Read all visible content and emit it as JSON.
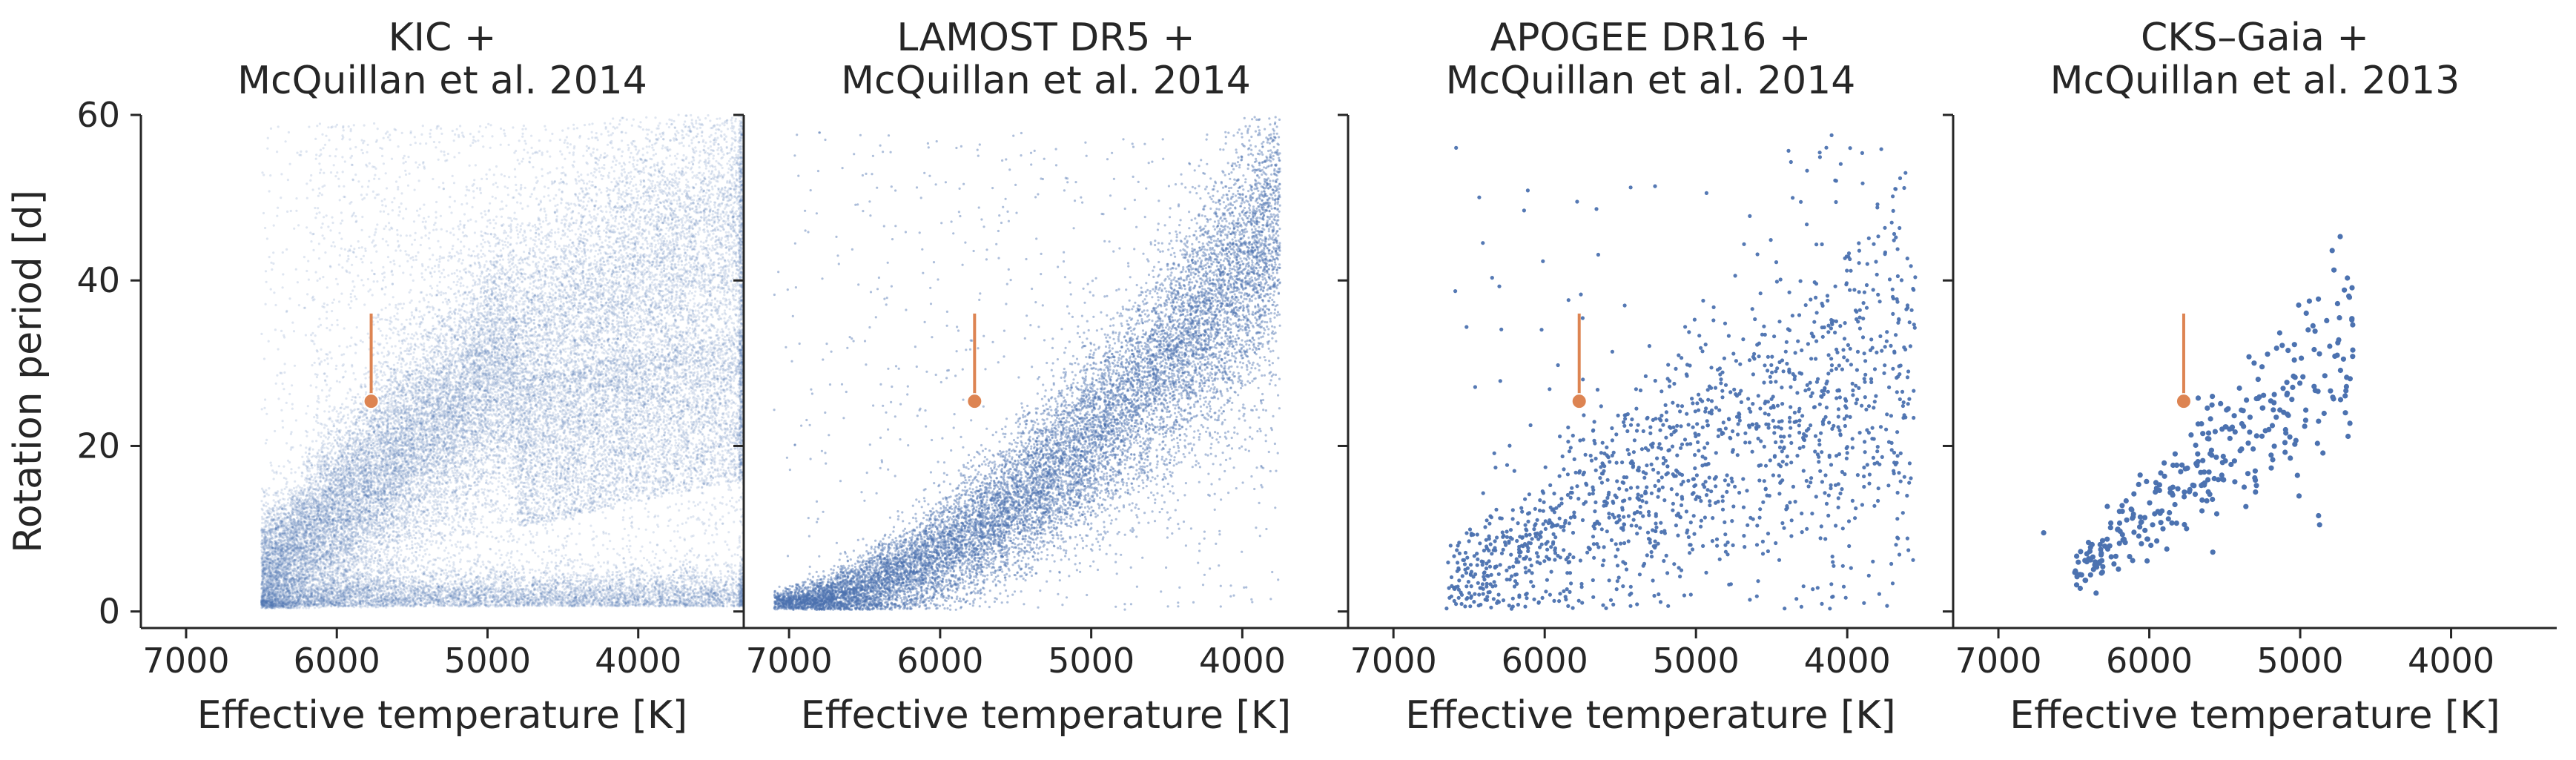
{
  "chart_data": [
    {
      "type": "scatter",
      "title_lines": [
        "KIC +",
        "McQuillan et al. 2014"
      ],
      "xlabel": "Effective temperature [K]",
      "ylabel": "Rotation period [d]",
      "xlim": [
        7300,
        3300
      ],
      "ylim": [
        -2,
        60
      ],
      "x_ticks": [
        7000,
        6000,
        5000,
        4000
      ],
      "y_ticks": [
        0,
        20,
        40,
        60
      ],
      "x_inverted": true,
      "grid": false,
      "point_color": "#4c72b0",
      "point_opacity": 0.18,
      "point_size": "tiny",
      "approx_point_count": 34000,
      "distribution": {
        "teff_range": [
          6500,
          3300
        ],
        "description_regions": [
          {
            "teff": [
              6500,
              6200
            ],
            "prot": [
              1,
              12
            ]
          },
          {
            "teff": [
              6200,
              5000
            ],
            "prot": [
              5,
              35
            ]
          },
          {
            "teff": [
              5000,
              3300
            ],
            "prot": [
              10,
              50
            ]
          }
        ]
      },
      "sun": {
        "teff": 5772,
        "prot": 25.4,
        "prot_upper": 36,
        "color": "#dd8452"
      }
    },
    {
      "type": "scatter",
      "title_lines": [
        "LAMOST DR5 +",
        "McQuillan et al. 2014"
      ],
      "xlabel": "Effective temperature [K]",
      "ylabel": "",
      "xlim": [
        7300,
        3300
      ],
      "ylim": [
        -2,
        60
      ],
      "x_ticks": [
        7000,
        6000,
        5000,
        4000
      ],
      "y_ticks": [
        0,
        20,
        40,
        60
      ],
      "x_inverted": true,
      "grid": false,
      "point_color": "#4c72b0",
      "point_opacity": 0.45,
      "point_size": "tiny",
      "approx_point_count": 14000,
      "distribution": {
        "teff_range": [
          7000,
          3700
        ],
        "description_regions": [
          {
            "teff": [
              7000,
              6300
            ],
            "prot": [
              0,
              4
            ]
          },
          {
            "teff": [
              6300,
              5500
            ],
            "prot": [
              2,
              20
            ]
          },
          {
            "teff": [
              5500,
              4000
            ],
            "prot": [
              10,
              45
            ]
          }
        ]
      },
      "sun": {
        "teff": 5772,
        "prot": 25.4,
        "prot_upper": 36,
        "color": "#dd8452"
      }
    },
    {
      "type": "scatter",
      "title_lines": [
        "APOGEE DR16 +",
        "McQuillan et al. 2014"
      ],
      "xlabel": "Effective temperature [K]",
      "ylabel": "",
      "xlim": [
        7300,
        3300
      ],
      "ylim": [
        -2,
        60
      ],
      "x_ticks": [
        7000,
        6000,
        5000,
        4000
      ],
      "y_ticks": [
        0,
        20,
        40,
        60
      ],
      "x_inverted": true,
      "grid": false,
      "point_color": "#4c72b0",
      "point_opacity": 0.95,
      "point_size": "small",
      "approx_point_count": 1500,
      "distribution": {
        "teff_range": [
          6700,
          3550
        ],
        "description_regions": [
          {
            "teff": [
              6700,
              6000
            ],
            "prot": [
              1,
              15
            ]
          },
          {
            "teff": [
              6000,
              5000
            ],
            "prot": [
              5,
              30
            ]
          },
          {
            "teff": [
              5000,
              3550
            ],
            "prot": [
              5,
              50
            ]
          }
        ]
      },
      "sun": {
        "teff": 5772,
        "prot": 25.4,
        "prot_upper": 36,
        "color": "#dd8452"
      }
    },
    {
      "type": "scatter",
      "title_lines": [
        "CKS–Gaia +",
        "McQuillan et al. 2013"
      ],
      "xlabel": "Effective temperature [K]",
      "ylabel": "",
      "xlim": [
        7300,
        3300
      ],
      "ylim": [
        -2,
        60
      ],
      "x_ticks": [
        7000,
        6000,
        5000,
        4000
      ],
      "y_ticks": [
        0,
        20,
        40,
        60
      ],
      "x_inverted": true,
      "grid": false,
      "point_color": "#4c72b0",
      "point_opacity": 1.0,
      "point_size": "medium",
      "approx_point_count": 330,
      "distribution": {
        "teff_range": [
          6700,
          4650
        ],
        "description_regions": [
          {
            "teff": [
              6500,
              6000
            ],
            "prot": [
              3,
              15
            ]
          },
          {
            "teff": [
              6000,
              5000
            ],
            "prot": [
              10,
              35
            ]
          },
          {
            "teff": [
              5000,
              4650
            ],
            "prot": [
              15,
              45
            ]
          }
        ]
      },
      "sun": {
        "teff": 5772,
        "prot": 25.4,
        "prot_upper": 36,
        "color": "#dd8452"
      }
    }
  ]
}
